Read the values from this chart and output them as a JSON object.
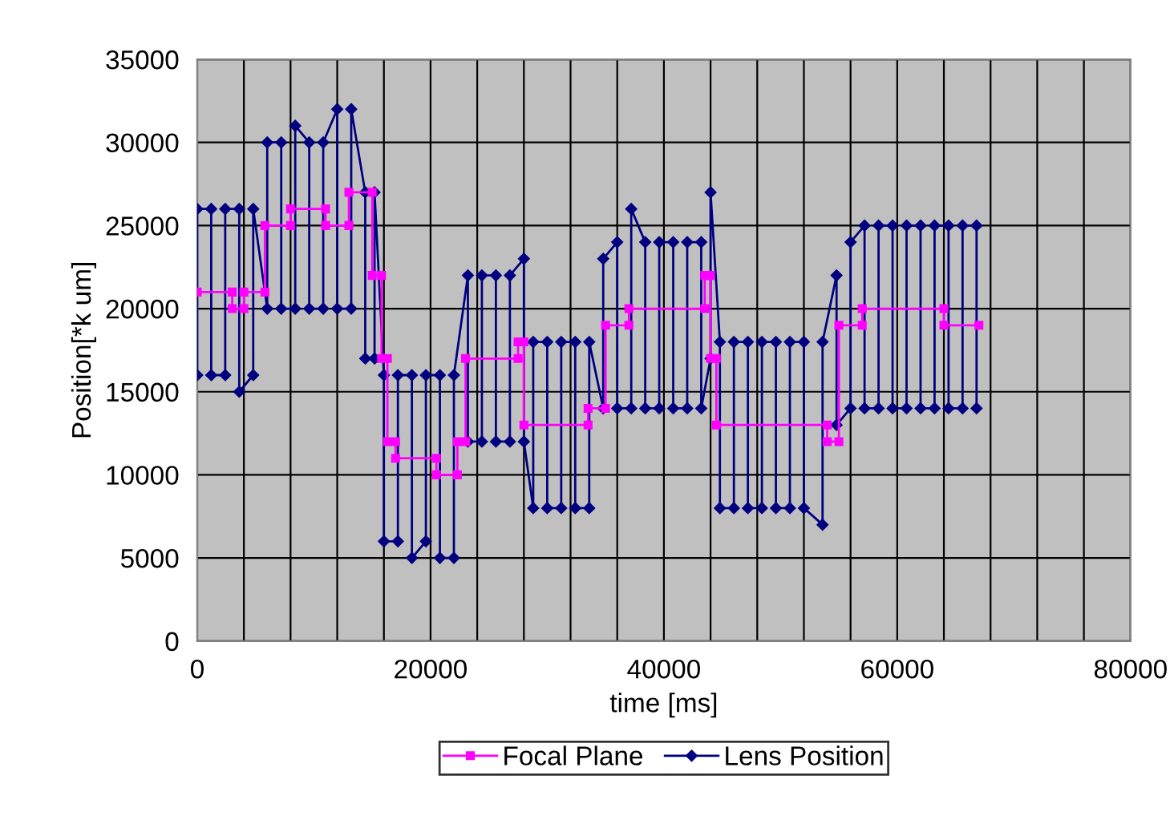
{
  "chart_data": {
    "type": "line",
    "xlabel": "time [ms]",
    "ylabel": "Position[*k um]",
    "xlim": [
      0,
      80000
    ],
    "ylim": [
      0,
      35000
    ],
    "xticks": [
      0,
      {
        "value": 4000,
        "label": null
      },
      {
        "value": 8000,
        "label": null
      },
      {
        "value": 12000,
        "label": null
      },
      {
        "value": 16000,
        "label": null
      },
      20000,
      {
        "value": 24000,
        "label": null
      },
      {
        "value": 28000,
        "label": null
      },
      {
        "value": 32000,
        "label": null
      },
      {
        "value": 36000,
        "label": null
      },
      40000,
      {
        "value": 44000,
        "label": null
      },
      {
        "value": 48000,
        "label": null
      },
      {
        "value": 52000,
        "label": null
      },
      {
        "value": 56000,
        "label": null
      },
      60000,
      {
        "value": 64000,
        "label": null
      },
      {
        "value": 68000,
        "label": null
      },
      {
        "value": 72000,
        "label": null
      },
      {
        "value": 76000,
        "label": null
      },
      80000
    ],
    "yticks": [
      0,
      5000,
      10000,
      15000,
      20000,
      25000,
      30000,
      35000
    ],
    "grid": true,
    "legend": "bottom",
    "line_style": "solid",
    "series": [
      {
        "name": "Focal Plane",
        "color": "#ff00ff",
        "marker": "square",
        "x": [
          0,
          3000,
          3000,
          4000,
          4000,
          5800,
          5800,
          8000,
          8000,
          11000,
          11000,
          13000,
          13000,
          15000,
          15000,
          15800,
          15800,
          16300,
          16300,
          17000,
          17000,
          20500,
          20500,
          22300,
          22300,
          23000,
          23000,
          27500,
          27500,
          28000,
          28000,
          33500,
          33500,
          35000,
          35000,
          37000,
          37000,
          43500,
          43500,
          44000,
          44000,
          44500,
          44500,
          54000,
          54000,
          55000,
          55000,
          57000,
          57000,
          64000,
          64000,
          67000
        ],
        "values": [
          21000,
          21000,
          20000,
          20000,
          21000,
          21000,
          25000,
          25000,
          26000,
          26000,
          25000,
          25000,
          27000,
          27000,
          22000,
          22000,
          17000,
          17000,
          12000,
          12000,
          11000,
          11000,
          10000,
          10000,
          12000,
          12000,
          17000,
          17000,
          18000,
          18000,
          13000,
          13000,
          14000,
          14000,
          19000,
          19000,
          20000,
          20000,
          22000,
          22000,
          17000,
          17000,
          13000,
          13000,
          12000,
          12000,
          19000,
          19000,
          20000,
          20000,
          19000,
          19000
        ]
      },
      {
        "name": "Lens Position",
        "color": "#000080",
        "marker": "diamond",
        "x": [
          0,
          0,
          1200,
          1200,
          2400,
          2400,
          3600,
          3600,
          4800,
          4800,
          6000,
          6000,
          7200,
          7200,
          8400,
          8400,
          9600,
          9600,
          10800,
          10800,
          12000,
          12000,
          13200,
          13200,
          14400,
          14400,
          15200,
          15200,
          16000,
          16000,
          17200,
          17200,
          18400,
          18400,
          19600,
          19600,
          20800,
          20800,
          22000,
          22000,
          23200,
          23200,
          24400,
          24400,
          25600,
          25600,
          26800,
          26800,
          28000,
          28000,
          28800,
          28800,
          30000,
          30000,
          31200,
          31200,
          32400,
          32400,
          33600,
          33600,
          34800,
          34800,
          36000,
          36000,
          37200,
          37200,
          38400,
          38400,
          39600,
          39600,
          40800,
          40800,
          42000,
          42000,
          43200,
          43200,
          44000,
          44000,
          44800,
          44800,
          46000,
          46000,
          47200,
          47200,
          48400,
          48400,
          49600,
          49600,
          50800,
          50800,
          52000,
          52000,
          53600,
          53600,
          54800,
          54800,
          56000,
          56000,
          57200,
          57200,
          58400,
          58400,
          59600,
          59600,
          60800,
          60800,
          62000,
          62000,
          63200,
          63200,
          64400,
          64400,
          65600,
          65600,
          66800,
          66800
        ],
        "values": [
          16000,
          26000,
          26000,
          16000,
          16000,
          26000,
          26000,
          15000,
          16000,
          26000,
          20000,
          30000,
          30000,
          20000,
          20000,
          31000,
          30000,
          20000,
          20000,
          30000,
          32000,
          20000,
          20000,
          32000,
          27000,
          17000,
          17000,
          27000,
          16000,
          6000,
          6000,
          16000,
          16000,
          5000,
          6000,
          16000,
          16000,
          5000,
          5000,
          16000,
          22000,
          12000,
          12000,
          22000,
          22000,
          12000,
          12000,
          22000,
          23000,
          12000,
          8000,
          18000,
          18000,
          8000,
          8000,
          18000,
          18000,
          8000,
          8000,
          18000,
          14000,
          23000,
          24000,
          14000,
          14000,
          26000,
          24000,
          14000,
          14000,
          24000,
          24000,
          14000,
          14000,
          24000,
          24000,
          14000,
          17000,
          27000,
          18000,
          8000,
          8000,
          18000,
          18000,
          8000,
          8000,
          18000,
          18000,
          8000,
          8000,
          18000,
          18000,
          8000,
          7000,
          18000,
          22000,
          13000,
          14000,
          24000,
          25000,
          14000,
          14000,
          25000,
          25000,
          14000,
          14000,
          25000,
          25000,
          14000,
          14000,
          25000,
          25000,
          14000,
          14000,
          25000,
          25000,
          14000
        ]
      }
    ]
  }
}
